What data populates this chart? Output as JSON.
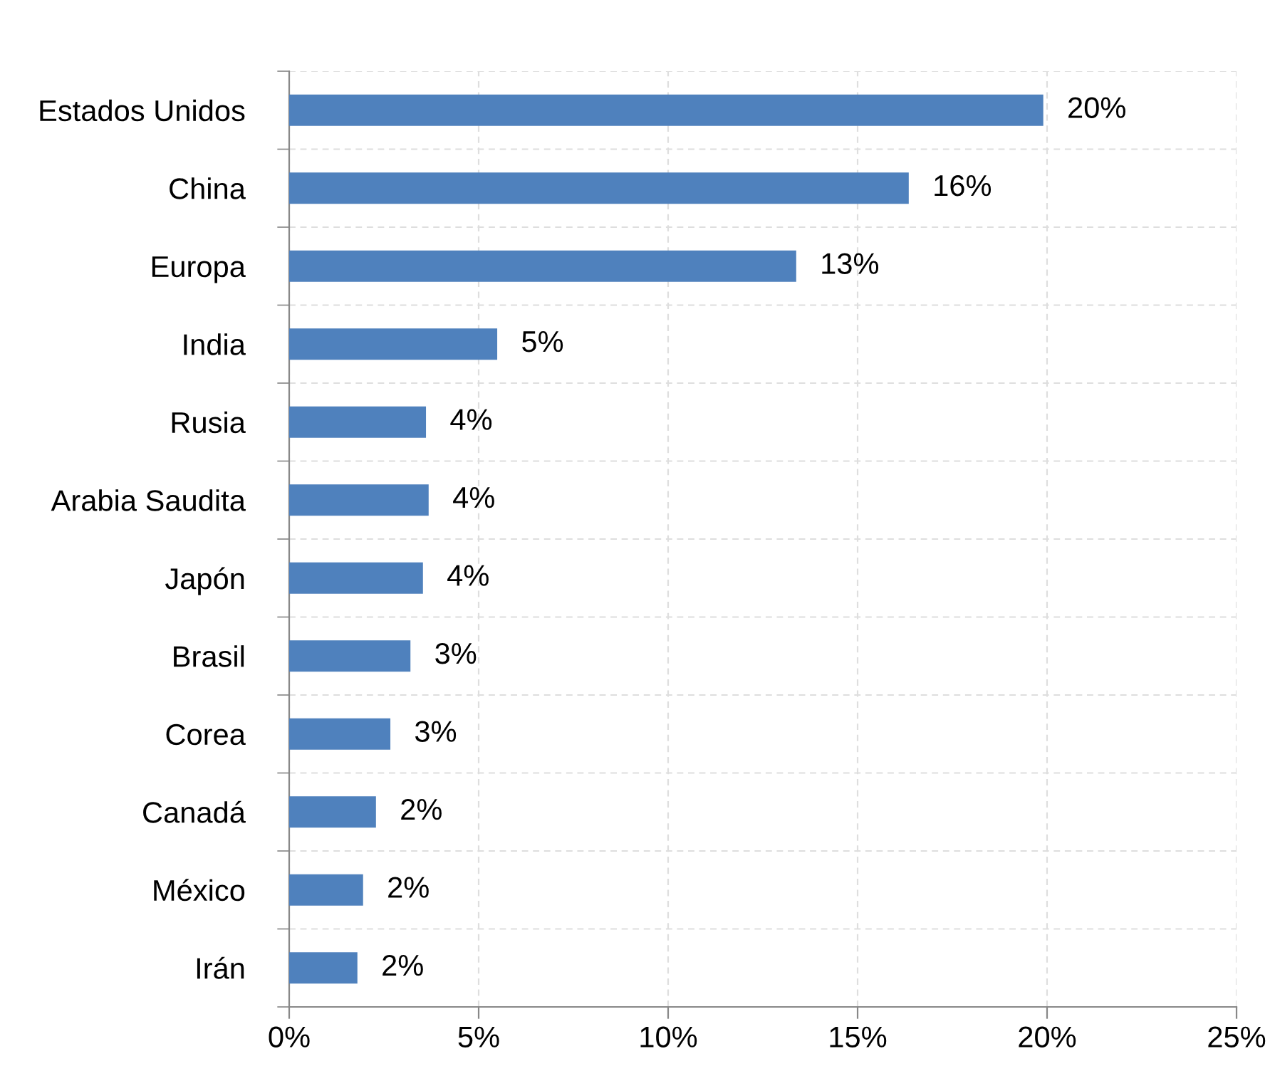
{
  "chart_data": {
    "type": "bar",
    "orientation": "horizontal",
    "categories": [
      "Estados Unidos",
      "China",
      "Europa",
      "India",
      "Rusia",
      "Arabia Saudita",
      "Japón",
      "Brasil",
      "Corea",
      "Canadá",
      "México",
      "Irán"
    ],
    "values": [
      19.9,
      16.35,
      13.38,
      5.49,
      3.61,
      3.68,
      3.53,
      3.2,
      2.67,
      2.29,
      1.95,
      1.8
    ],
    "value_labels": [
      "20%",
      "16%",
      "13%",
      "5%",
      "4%",
      "4%",
      "4%",
      "3%",
      "3%",
      "2%",
      "2%",
      "2%"
    ],
    "color": "#4f81bd",
    "xlim": [
      0,
      25
    ],
    "xticks": [
      {
        "value": 0,
        "label": "0%"
      },
      {
        "value": 5,
        "label": "5%"
      },
      {
        "value": 10,
        "label": "10%"
      },
      {
        "value": 15,
        "label": "15%"
      },
      {
        "value": 20,
        "label": "20%"
      },
      {
        "value": 25,
        "label": "25%"
      }
    ],
    "grid": true
  }
}
